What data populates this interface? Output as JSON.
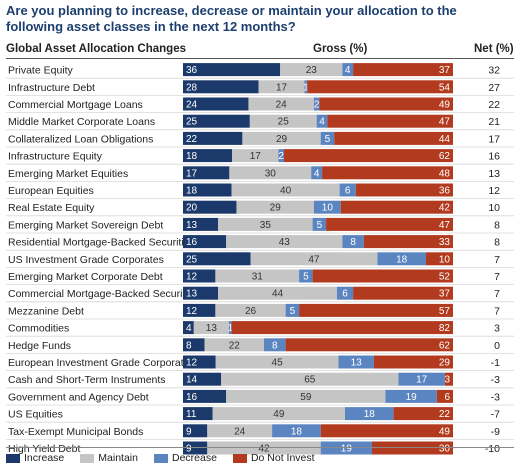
{
  "title": "Are you planning to increase, decrease or maintain your allocation to the following asset classes in the next 12 months?",
  "headers": {
    "category": "Global Asset Allocation Changes",
    "gross": "Gross (%)",
    "net": "Net (%)"
  },
  "colors": {
    "Increase": "#1b3a6b",
    "Maintain": "#c5c5c5",
    "Decrease": "#5b85c1",
    "Do Not Invest": "#b23a1e"
  },
  "chart_data": {
    "type": "bar",
    "stacked": true,
    "orientation": "horizontal",
    "title": "Are you planning to increase, decrease or maintain your allocation to the following asset classes in the next 12 months?",
    "categories": [
      "Private Equity",
      "Infrastructure Debt",
      "Commercial Mortgage Loans",
      "Middle Market Corporate Loans",
      "Collateralized Loan Obligations",
      "Infrastructure Equity",
      "Emerging Market Equities",
      "European Equities",
      "Real Estate Equity",
      "Emerging Market Sovereign Debt",
      "Residential Mortgage-Backed Securities",
      "US Investment Grade Corporates",
      "Emerging Market Corporate Debt",
      "Commercial Mortgage-Backed Securities",
      "Mezzanine Debt",
      "Commodities",
      "Hedge Funds",
      "European Investment Grade Corporates",
      "Cash and Short-Term Instruments",
      "Government and Agency Debt",
      "US Equities",
      "Tax-Exempt Municipal Bonds",
      "High Yield Debt"
    ],
    "series": [
      {
        "name": "Increase",
        "values": [
          36,
          28,
          24,
          25,
          22,
          18,
          17,
          18,
          20,
          13,
          16,
          25,
          12,
          13,
          12,
          4,
          8,
          12,
          14,
          16,
          11,
          9,
          9
        ]
      },
      {
        "name": "Maintain",
        "values": [
          23,
          17,
          24,
          25,
          29,
          17,
          30,
          40,
          29,
          35,
          43,
          47,
          31,
          44,
          26,
          13,
          22,
          45,
          65,
          59,
          49,
          24,
          42
        ]
      },
      {
        "name": "Decrease",
        "values": [
          4,
          1,
          2,
          4,
          5,
          2,
          4,
          6,
          10,
          5,
          8,
          18,
          5,
          6,
          5,
          1,
          8,
          13,
          17,
          19,
          18,
          18,
          19
        ]
      },
      {
        "name": "Do Not Invest",
        "values": [
          37,
          54,
          49,
          47,
          44,
          62,
          48,
          36,
          42,
          47,
          33,
          10,
          52,
          37,
          57,
          82,
          62,
          29,
          3,
          6,
          22,
          49,
          30
        ]
      }
    ],
    "net": [
      32,
      27,
      22,
      21,
      17,
      16,
      13,
      12,
      10,
      8,
      8,
      7,
      7,
      7,
      7,
      3,
      0,
      -1,
      -3,
      -3,
      -7,
      -9,
      -10
    ],
    "xlim": [
      0,
      100
    ],
    "legend_position": "bottom"
  }
}
